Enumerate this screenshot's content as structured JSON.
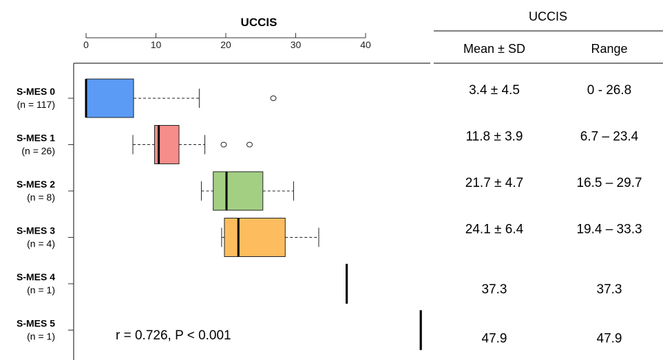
{
  "chart_data": {
    "type": "box",
    "title": "UCCIS",
    "x_ticks": [
      0,
      10,
      20,
      30,
      40
    ],
    "xlim": [
      -2,
      48.5
    ],
    "groups": [
      {
        "label": "S-MES 0",
        "n_label": "(n = 117)",
        "color": "#5b9bf5",
        "whisker_low": 0,
        "q1": 0,
        "median": 0,
        "q3": 6.8,
        "whisker_high": 16.2,
        "outliers": [
          26.8
        ],
        "mean_sd": "3.4 ± 4.5",
        "range": "0 - 26.8"
      },
      {
        "label": "S-MES 1",
        "n_label": "(n = 26)",
        "color": "#f78d8a",
        "whisker_low": 6.7,
        "q1": 9.8,
        "median": 10.4,
        "q3": 13.3,
        "whisker_high": 17.0,
        "outliers": [
          19.7,
          23.4
        ],
        "mean_sd": "11.8 ± 3.9",
        "range": "6.7 – 23.4"
      },
      {
        "label": "S-MES 2",
        "n_label": "(n = 8)",
        "color": "#a3cf83",
        "whisker_low": 16.5,
        "q1": 18.2,
        "median": 20.1,
        "q3": 25.3,
        "whisker_high": 29.7,
        "outliers": [],
        "mean_sd": "21.7 ± 4.7",
        "range": "16.5 – 29.7"
      },
      {
        "label": "S-MES 3",
        "n_label": "(n = 4)",
        "color": "#fdbd5f",
        "whisker_low": 19.4,
        "q1": 19.8,
        "median": 21.8,
        "q3": 28.5,
        "whisker_high": 33.3,
        "outliers": [],
        "mean_sd": "24.1 ± 6.4",
        "range": "19.4 – 33.3"
      },
      {
        "label": "S-MES 4",
        "n_label": "(n = 1)",
        "color": "#000000",
        "whisker_low": 37.3,
        "q1": 37.3,
        "median": 37.3,
        "q3": 37.3,
        "whisker_high": 37.3,
        "outliers": [],
        "mean_sd": "37.3",
        "range": "37.3"
      },
      {
        "label": "S-MES 5",
        "n_label": "(n = 1)",
        "color": "#000000",
        "whisker_low": 47.9,
        "q1": 47.9,
        "median": 47.9,
        "q3": 47.9,
        "whisker_high": 47.9,
        "outliers": [],
        "mean_sd": "47.9",
        "range": "47.9"
      }
    ],
    "annotation": "r = 0.726, P < 0.001",
    "table": {
      "title": "UCCIS",
      "columns": [
        "Mean ± SD",
        "Range"
      ]
    }
  }
}
